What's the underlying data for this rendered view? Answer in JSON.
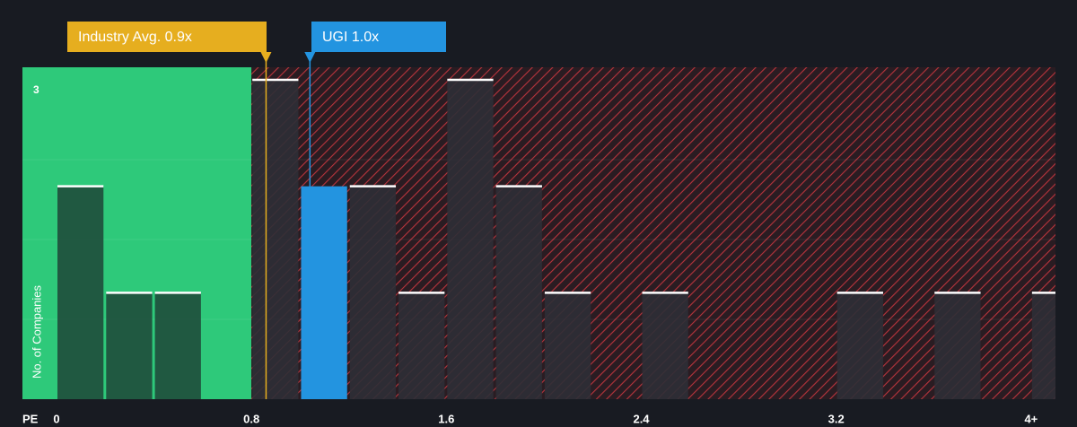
{
  "chart_data": {
    "type": "histogram",
    "bins": [
      0,
      0.2,
      0.4,
      0.6,
      0.8,
      1.0,
      1.2,
      1.4,
      1.6,
      1.8,
      2.0,
      2.2,
      2.4,
      2.6,
      2.8,
      3.0,
      3.2,
      3.4,
      3.6,
      3.8,
      4.0,
      4.2
    ],
    "values": [
      2,
      1,
      1,
      0,
      3,
      2,
      2,
      1,
      3,
      2,
      1,
      0,
      1,
      0,
      0,
      0,
      1,
      0,
      1,
      0,
      1
    ],
    "highlight_bin": 5,
    "color": "#2d2f36",
    "fair_color": "#1f4d3b",
    "highlight_color": "#2394e0",
    "xlim": [
      0,
      4.1
    ],
    "ylim": [
      0,
      3
    ],
    "xticks": [
      0,
      0.8,
      1.6,
      2.4,
      3.2,
      {
        "value": 4,
        "label": "4+"
      }
    ],
    "yticks": [
      3
    ],
    "x_label": "PE",
    "y_label": "No. of Companies",
    "fair_range": [
      0,
      0.8
    ],
    "annotations": [
      {
        "text": "Industry Avg. 0.9x",
        "value": 0.86,
        "color": "#e6ae1f"
      },
      {
        "text": "UGI 1.0x",
        "value": 1.04,
        "color": "#2394e0"
      }
    ]
  }
}
